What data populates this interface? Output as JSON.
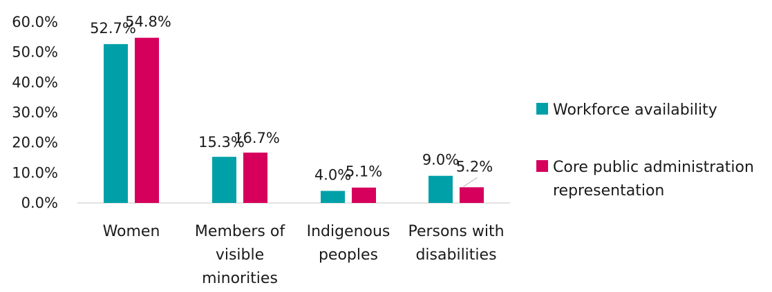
{
  "chart_data": {
    "type": "bar",
    "title": "",
    "xlabel": "",
    "ylabel": "",
    "ylim": [
      0,
      60
    ],
    "yticks": [
      0,
      10,
      20,
      30,
      40,
      50,
      60
    ],
    "ytick_labels": [
      "0.0%",
      "10.0%",
      "20.0%",
      "30.0%",
      "40.0%",
      "50.0%",
      "60.0%"
    ],
    "grid": false,
    "legend_position": "right",
    "categories": [
      [
        "Women"
      ],
      [
        "Members of",
        "visible",
        "minorities"
      ],
      [
        "Indigenous",
        "peoples"
      ],
      [
        "Persons with",
        "disabilities"
      ]
    ],
    "series": [
      {
        "name": "Workforce availability",
        "legend_lines": [
          "Workforce availability"
        ],
        "color": "#00a0a8",
        "values": [
          52.7,
          15.3,
          4.0,
          9.0
        ],
        "labels": [
          "52.7%",
          "15.3%",
          "4.0%",
          "9.0%"
        ]
      },
      {
        "name": "Core public administration representation",
        "legend_lines": [
          "Core public administration",
          "representation"
        ],
        "color": "#d6005c",
        "values": [
          54.8,
          16.7,
          5.1,
          5.2
        ],
        "labels": [
          "54.8%",
          "16.7%",
          "5.1%",
          "5.2%"
        ]
      }
    ]
  }
}
